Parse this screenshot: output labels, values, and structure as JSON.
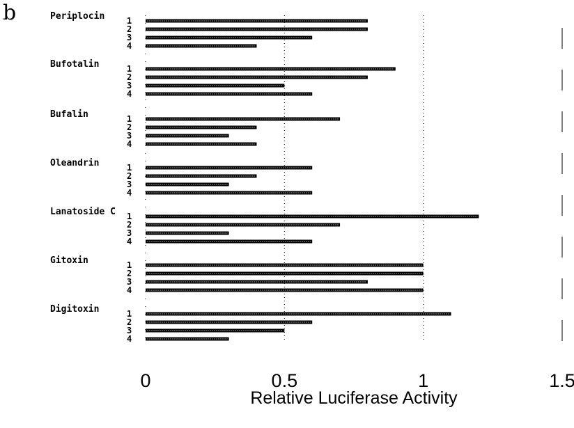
{
  "panel_label": "b",
  "chart_data": {
    "type": "bar",
    "orientation": "horizontal",
    "xlabel": "Relative Luciferase Activity",
    "ylabel": "",
    "xlim": [
      0,
      1.5
    ],
    "x_ticks": [
      "0",
      "0.5",
      "1",
      "1.5"
    ],
    "x_tick_values": [
      0,
      0.5,
      1,
      1.5
    ],
    "grid": "dashed vertical lines at 0.5 and 1",
    "bar_color": "#000000",
    "groups": [
      {
        "name": "Periplocin",
        "reps": [
          "1",
          "2",
          "3",
          "4"
        ],
        "values": [
          0.8,
          0.8,
          0.6,
          0.4
        ]
      },
      {
        "name": "Bufotalin",
        "reps": [
          "1",
          "2",
          "3",
          "4"
        ],
        "values": [
          0.9,
          0.8,
          0.5,
          0.6
        ]
      },
      {
        "name": "Bufalin",
        "reps": [
          "1",
          "2",
          "3",
          "4"
        ],
        "values": [
          0.7,
          0.4,
          0.3,
          0.4
        ]
      },
      {
        "name": "Oleandrin",
        "reps": [
          "1",
          "2",
          "3",
          "4"
        ],
        "values": [
          0.6,
          0.4,
          0.3,
          0.6
        ]
      },
      {
        "name": "Lanatoside C",
        "reps": [
          "1",
          "2",
          "3",
          "4"
        ],
        "values": [
          1.2,
          0.7,
          0.3,
          0.6
        ]
      },
      {
        "name": "Gitoxin",
        "reps": [
          "1",
          "2",
          "3",
          "4"
        ],
        "values": [
          1.0,
          1.0,
          0.8,
          1.0
        ]
      },
      {
        "name": "Digitoxin",
        "reps": [
          "1",
          "2",
          "3",
          "4"
        ],
        "values": [
          1.1,
          0.6,
          0.5,
          0.3
        ]
      }
    ]
  }
}
